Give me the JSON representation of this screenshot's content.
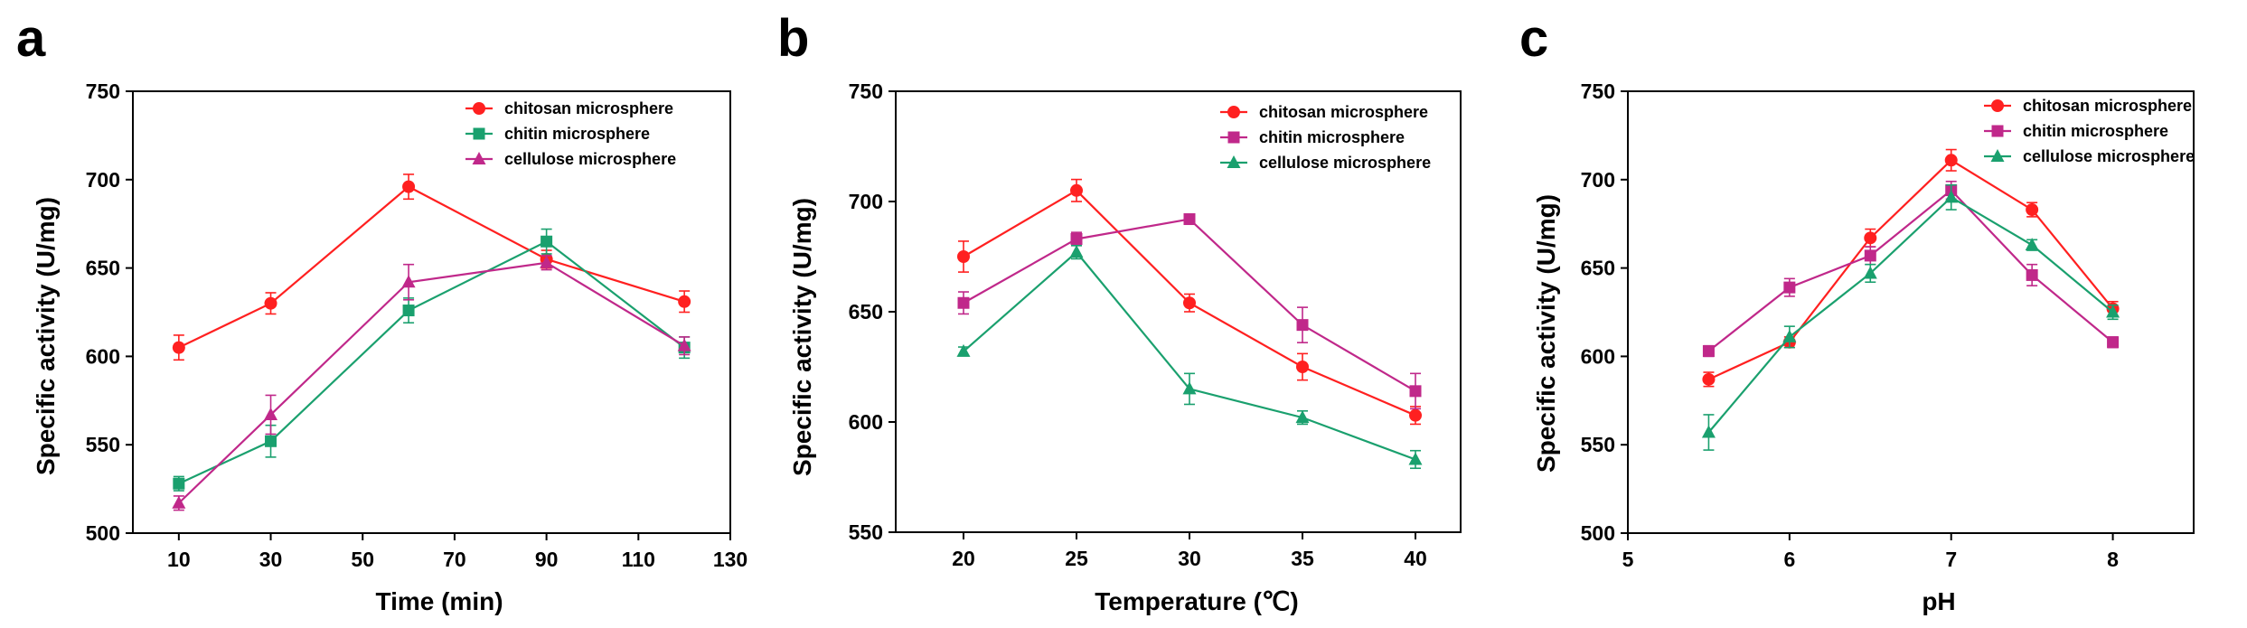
{
  "chart_data": [
    {
      "panel": "a",
      "type": "line",
      "xlabel": "Time (min)",
      "ylabel": "Specific activity (U/mg)",
      "xlim": [
        0,
        130
      ],
      "ylim": [
        500,
        750
      ],
      "xticks": [
        10,
        30,
        50,
        70,
        90,
        110,
        130
      ],
      "yticks": [
        500,
        550,
        600,
        650,
        700,
        750
      ],
      "x": [
        10,
        30,
        60,
        90,
        120
      ],
      "legend_position": "top-right",
      "series": [
        {
          "name": "chitosan microsphere",
          "color": "#ff2020",
          "marker": "circle",
          "values": [
            605,
            630,
            696,
            655,
            631
          ],
          "errors": [
            7,
            6,
            7,
            5,
            6
          ]
        },
        {
          "name": "chitin microsphere",
          "color": "#1aa06e",
          "marker": "square",
          "values": [
            528,
            552,
            626,
            665,
            605
          ],
          "errors": [
            4,
            9,
            7,
            7,
            6
          ]
        },
        {
          "name": "cellulose microsphere",
          "color": "#c0288a",
          "marker": "triangle",
          "values": [
            517,
            567,
            642,
            653,
            606
          ],
          "errors": [
            4,
            11,
            10,
            4,
            5
          ]
        }
      ]
    },
    {
      "panel": "b",
      "type": "line",
      "xlabel": "Temperature (℃)",
      "ylabel": "Specific activity (U/mg)",
      "xlim": [
        17,
        42
      ],
      "ylim": [
        550,
        750
      ],
      "xticks": [
        20,
        25,
        30,
        35,
        40
      ],
      "yticks": [
        550,
        600,
        650,
        700,
        750
      ],
      "x": [
        20,
        25,
        30,
        35,
        40
      ],
      "legend_position": "top-right",
      "series": [
        {
          "name": "chitosan microsphere",
          "color": "#ff2020",
          "marker": "circle",
          "values": [
            675,
            705,
            654,
            625,
            603
          ],
          "errors": [
            7,
            5,
            4,
            6,
            4
          ]
        },
        {
          "name": "chitin microsphere",
          "color": "#c0288a",
          "marker": "square",
          "values": [
            654,
            683,
            692,
            644,
            614
          ],
          "errors": [
            5,
            3,
            2,
            8,
            8
          ]
        },
        {
          "name": "cellulose microsphere",
          "color": "#1aa06e",
          "marker": "triangle",
          "values": [
            632,
            677,
            615,
            602,
            583
          ],
          "errors": [
            2,
            3,
            7,
            3,
            4
          ]
        }
      ]
    },
    {
      "panel": "c",
      "type": "line",
      "xlabel": "pH",
      "ylabel": "Specific activity (U/mg)",
      "xlim": [
        5,
        8.5
      ],
      "ylim": [
        500,
        750
      ],
      "xticks": [
        5,
        6,
        7,
        8
      ],
      "yticks": [
        500,
        550,
        600,
        650,
        700,
        750
      ],
      "x": [
        5.5,
        6,
        6.5,
        7,
        7.5,
        8
      ],
      "legend_position": "top-right",
      "series": [
        {
          "name": "chitosan microsphere",
          "color": "#ff2020",
          "marker": "circle",
          "values": [
            587,
            608,
            667,
            711,
            683,
            627
          ],
          "errors": [
            4,
            3,
            5,
            6,
            4,
            4
          ]
        },
        {
          "name": "chitin microsphere",
          "color": "#c0288a",
          "marker": "square",
          "values": [
            603,
            639,
            657,
            694,
            646,
            608
          ],
          "errors": [
            3,
            5,
            5,
            5,
            6,
            3
          ]
        },
        {
          "name": "cellulose microsphere",
          "color": "#1aa06e",
          "marker": "triangle",
          "values": [
            557,
            611,
            647,
            690,
            663,
            625
          ],
          "errors": [
            10,
            6,
            5,
            7,
            3,
            4
          ]
        }
      ]
    }
  ]
}
